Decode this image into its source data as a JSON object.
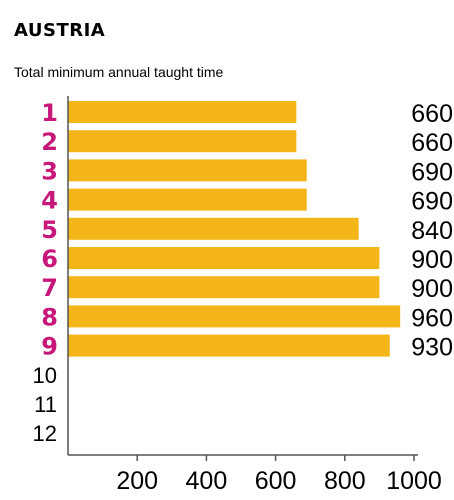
{
  "header": {
    "title": "AUSTRIA",
    "subtitle": "Total minimum annual taught time"
  },
  "colors": {
    "bar": "#f4b519",
    "category_highlight": "#c8177a",
    "axis": "#555555"
  },
  "chart_data": {
    "type": "bar",
    "orientation": "horizontal",
    "categories": [
      "1",
      "2",
      "3",
      "4",
      "5",
      "6",
      "7",
      "8",
      "9",
      "10",
      "11",
      "12"
    ],
    "values": [
      660,
      660,
      690,
      690,
      840,
      900,
      900,
      960,
      930,
      null,
      null,
      null
    ],
    "value_labels": [
      "660",
      "660",
      "690",
      "690",
      "840",
      "900",
      "900",
      "960",
      "930",
      "",
      "",
      ""
    ],
    "xticks": [
      200,
      400,
      600,
      800,
      1000
    ],
    "xtick_labels": [
      "200",
      "400",
      "600",
      "800",
      "1000"
    ],
    "xlim": [
      0,
      1000
    ],
    "title": "AUSTRIA",
    "subtitle": "Total minimum annual taught time",
    "grid": false,
    "legend": "none"
  }
}
